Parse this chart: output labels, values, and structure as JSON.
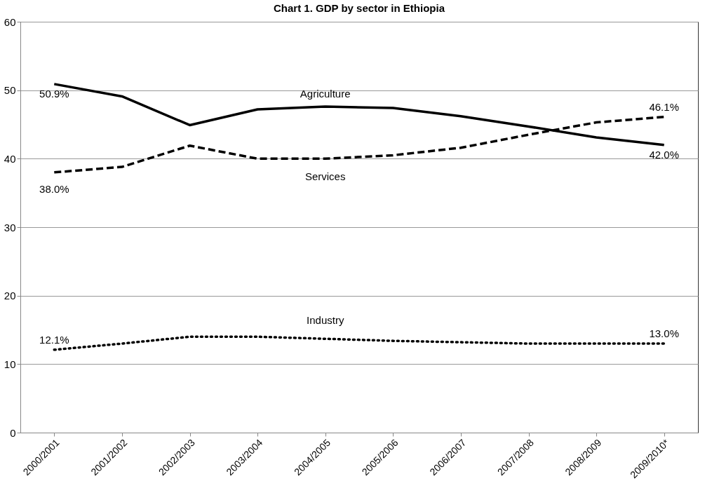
{
  "chart_data": {
    "type": "line",
    "title": "Chart 1. GDP by sector in Ethiopia",
    "categories": [
      "2000/2001",
      "2001/2002",
      "2002/2003",
      "2003/2004",
      "2004/2005",
      "2005/2006",
      "2006/2007",
      "2007/2008",
      "2008/2009",
      "2009/2010*"
    ],
    "series": [
      {
        "name": "Agriculture",
        "color": "#000000",
        "line_style": "solid",
        "values": [
          50.9,
          49.1,
          44.9,
          47.2,
          47.6,
          47.4,
          46.2,
          44.7,
          43.1,
          42.0
        ],
        "value_labels": [
          "50.9%",
          null,
          null,
          null,
          null,
          null,
          null,
          null,
          null,
          "42.0%"
        ]
      },
      {
        "name": "Services",
        "color": "#000000",
        "line_style": "dashed",
        "values": [
          38.0,
          38.8,
          41.9,
          40.0,
          40.0,
          40.5,
          41.6,
          43.5,
          45.3,
          46.1
        ],
        "value_labels": [
          "38.0%",
          null,
          null,
          null,
          null,
          null,
          null,
          null,
          null,
          "46.1%"
        ]
      },
      {
        "name": "Industry",
        "color": "#000000",
        "line_style": "dotted",
        "values": [
          12.1,
          13.0,
          14.0,
          14.0,
          13.7,
          13.4,
          13.2,
          13.0,
          13.0,
          13.0
        ],
        "value_labels": [
          "12.1%",
          null,
          null,
          null,
          null,
          null,
          null,
          null,
          null,
          "13.0%"
        ]
      }
    ],
    "ylim": [
      0,
      60
    ],
    "yticks": [
      0,
      10,
      20,
      30,
      40,
      50,
      60
    ],
    "grid": "y"
  }
}
